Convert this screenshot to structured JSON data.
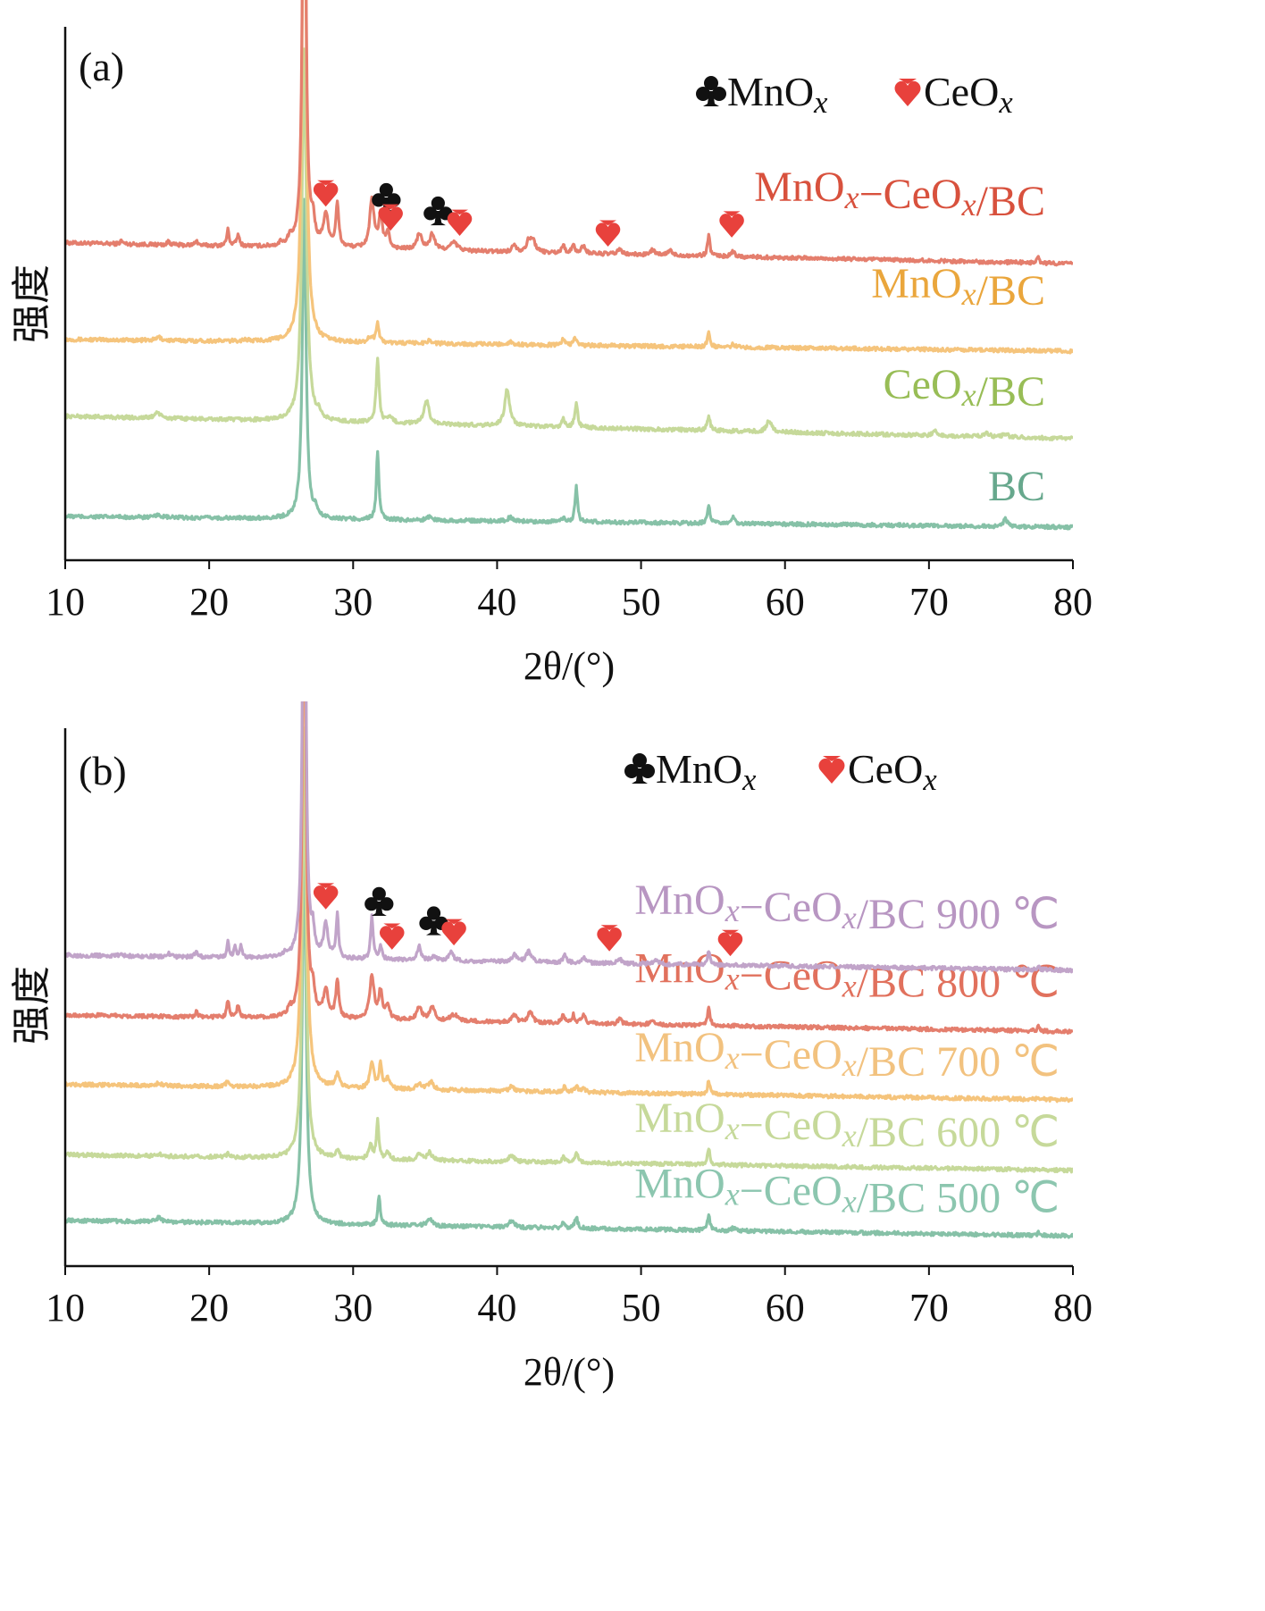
{
  "chart_data": [
    {
      "type": "line",
      "panel_label": "(a)",
      "xlabel": "2θ/(°)",
      "ylabel": "强度",
      "xlim": [
        10,
        80
      ],
      "ylim": [
        0,
        100
      ],
      "xticks": [
        10,
        20,
        30,
        40,
        50,
        60,
        70,
        80
      ],
      "legend": [
        {
          "symbol": "club",
          "text": "MnOx",
          "color": "#111111"
        },
        {
          "symbol": "heart",
          "text": "CeOx",
          "color": "#e8413c"
        }
      ],
      "series": [
        {
          "name": "MnOx−CeOx/BC",
          "color": "#e47e6d",
          "label_color": "#d8513d",
          "baseline": [
            59.5,
            55.6
          ],
          "peaks": [
            [
              26.6,
              110,
              0.12
            ],
            [
              27.2,
              4,
              0.15
            ],
            [
              28.1,
              6,
              0.2
            ],
            [
              28.9,
              8,
              0.12
            ],
            [
              31.3,
              9,
              0.18
            ],
            [
              31.9,
              6,
              0.15
            ],
            [
              32.4,
              3,
              0.15
            ],
            [
              34.6,
              3,
              0.2
            ],
            [
              35.5,
              3,
              0.2
            ],
            [
              37.0,
              1.5,
              0.3
            ],
            [
              13.9,
              0.6,
              0.1
            ],
            [
              17.2,
              0.8,
              0.1
            ],
            [
              19.1,
              1,
              0.1
            ],
            [
              21.3,
              3,
              0.1
            ],
            [
              22.0,
              2,
              0.12
            ],
            [
              25.0,
              0.8,
              0.1
            ],
            [
              25.6,
              1.5,
              0.15
            ],
            [
              41.2,
              1.5,
              0.15
            ],
            [
              42.2,
              2,
              0.2
            ],
            [
              42.5,
              2,
              0.2
            ],
            [
              44.6,
              1.5,
              0.12
            ],
            [
              45.3,
              1.5,
              0.12
            ],
            [
              46.0,
              1.5,
              0.15
            ],
            [
              48.5,
              1,
              0.15
            ],
            [
              50.8,
              1,
              0.15
            ],
            [
              52.0,
              1,
              0.15
            ],
            [
              54.7,
              4,
              0.1
            ],
            [
              56.4,
              1,
              0.15
            ],
            [
              77.6,
              1,
              0.1
            ]
          ]
        },
        {
          "name": "MnOx/BC",
          "color": "#f5c47c",
          "label_color": "#eaa63c",
          "baseline": [
            41.4,
            39.2
          ],
          "peaks": [
            [
              26.6,
              110,
              0.15
            ],
            [
              31.7,
              3.5,
              0.12
            ],
            [
              31.2,
              1,
              0.2
            ],
            [
              35.3,
              0.6,
              0.2
            ],
            [
              40.9,
              0.5,
              0.2
            ],
            [
              44.6,
              1.2,
              0.12
            ],
            [
              45.4,
              1.5,
              0.12
            ],
            [
              54.7,
              2.8,
              0.1
            ],
            [
              56.4,
              0.5,
              0.15
            ],
            [
              16.5,
              0.6,
              0.2
            ],
            [
              22.5,
              0.3,
              0.2
            ]
          ]
        },
        {
          "name": "CeOx/BC",
          "color": "#c6d99a",
          "label_color": "#98bd56",
          "baseline": [
            27.0,
            22.8
          ],
          "peaks": [
            [
              26.6,
              70,
              0.18
            ],
            [
              31.7,
              12,
              0.12
            ],
            [
              35.1,
              4.5,
              0.2
            ],
            [
              40.7,
              7,
              0.2
            ],
            [
              45.5,
              4.5,
              0.12
            ],
            [
              44.6,
              1.5,
              0.12
            ],
            [
              54.7,
              2.7,
              0.12
            ],
            [
              58.9,
              2.2,
              0.2
            ],
            [
              16.4,
              1.2,
              0.2
            ],
            [
              27.6,
              1,
              0.1
            ],
            [
              32.6,
              1,
              0.2
            ],
            [
              70.4,
              0.8,
              0.2
            ],
            [
              74.0,
              0.8,
              0.2
            ],
            [
              75.3,
              0.6,
              0.2
            ]
          ]
        },
        {
          "name": "BC",
          "color": "#86c1a7",
          "label_color": "#67a88d",
          "baseline": [
            8.2,
            6.2
          ],
          "peaks": [
            [
              26.6,
              60,
              0.15
            ],
            [
              31.7,
              13,
              0.1
            ],
            [
              45.5,
              6.7,
              0.1
            ],
            [
              54.7,
              3.3,
              0.1
            ],
            [
              27.4,
              1.5,
              0.1
            ],
            [
              56.4,
              1.5,
              0.1
            ],
            [
              75.3,
              1.5,
              0.15
            ],
            [
              16.5,
              0.5,
              0.2
            ],
            [
              35.3,
              0.7,
              0.2
            ],
            [
              40.9,
              0.7,
              0.2
            ],
            [
              44.6,
              0.7,
              0.1
            ]
          ]
        }
      ],
      "markers": [
        {
          "symbol": "heart",
          "x": 28.1,
          "y": 69
        },
        {
          "symbol": "club",
          "x": 32.3,
          "y": 68
        },
        {
          "symbol": "heart",
          "x": 32.6,
          "y": 64.5
        },
        {
          "symbol": "club",
          "x": 35.9,
          "y": 65.5
        },
        {
          "symbol": "heart",
          "x": 37.4,
          "y": 63.5
        },
        {
          "symbol": "heart",
          "x": 47.7,
          "y": 61.5
        },
        {
          "symbol": "heart",
          "x": 56.3,
          "y": 63.2
        }
      ]
    },
    {
      "type": "line",
      "panel_label": "(b)",
      "xlabel": "2θ/(°)",
      "ylabel": "强度",
      "xlim": [
        10,
        80
      ],
      "ylim": [
        0,
        100
      ],
      "xticks": [
        10,
        20,
        30,
        40,
        50,
        60,
        70,
        80
      ],
      "legend": [
        {
          "symbol": "club",
          "text": "MnOx",
          "color": "#111111"
        },
        {
          "symbol": "heart",
          "text": "CeOx",
          "color": "#e8413c"
        }
      ],
      "series": [
        {
          "name": "MnOx−CeOx/BC 900 ℃",
          "color": "#c1a4c9",
          "label_color": "#b896c2",
          "baseline": [
            57.8,
            55.0
          ],
          "peaks": [
            [
              26.6,
              110,
              0.12
            ],
            [
              27.2,
              4,
              0.12
            ],
            [
              28.1,
              6,
              0.18
            ],
            [
              28.9,
              8,
              0.1
            ],
            [
              31.3,
              8,
              0.1
            ],
            [
              31.9,
              2.5,
              0.12
            ],
            [
              34.6,
              2.5,
              0.15
            ],
            [
              35.6,
              0.8,
              0.2
            ],
            [
              36.8,
              1.5,
              0.2
            ],
            [
              13.9,
              0.6,
              0.1
            ],
            [
              17.2,
              0.6,
              0.1
            ],
            [
              19.1,
              1.2,
              0.1
            ],
            [
              21.3,
              3,
              0.08
            ],
            [
              21.8,
              2,
              0.1
            ],
            [
              22.2,
              2,
              0.1
            ],
            [
              25.3,
              0.8,
              0.1
            ],
            [
              41.2,
              1.5,
              0.15
            ],
            [
              42.2,
              2,
              0.2
            ],
            [
              44.7,
              1.5,
              0.12
            ],
            [
              46.0,
              1.2,
              0.15
            ],
            [
              48.5,
              1,
              0.15
            ],
            [
              51.0,
              1,
              0.15
            ],
            [
              54.7,
              2.5,
              0.1
            ],
            [
              77.6,
              0.6,
              0.1
            ]
          ]
        },
        {
          "name": "MnOx−CeOx/BC 800 ℃",
          "color": "#e47e6d",
          "label_color": "#e1715d",
          "baseline": [
            46.7,
            43.6
          ],
          "peaks": [
            [
              26.6,
              110,
              0.12
            ],
            [
              27.2,
              4,
              0.15
            ],
            [
              28.1,
              5,
              0.2
            ],
            [
              28.9,
              7,
              0.12
            ],
            [
              31.3,
              8,
              0.18
            ],
            [
              31.9,
              5,
              0.15
            ],
            [
              32.4,
              2.5,
              0.15
            ],
            [
              34.6,
              2.5,
              0.2
            ],
            [
              35.5,
              2.5,
              0.2
            ],
            [
              37.0,
              1.2,
              0.3
            ],
            [
              19.1,
              1,
              0.1
            ],
            [
              21.3,
              3,
              0.1
            ],
            [
              22.0,
              2,
              0.12
            ],
            [
              25.6,
              1.3,
              0.15
            ],
            [
              41.2,
              1.5,
              0.15
            ],
            [
              42.3,
              2,
              0.2
            ],
            [
              44.6,
              1.5,
              0.12
            ],
            [
              45.3,
              1.5,
              0.12
            ],
            [
              46.0,
              1.5,
              0.15
            ],
            [
              48.5,
              1,
              0.15
            ],
            [
              50.8,
              1,
              0.15
            ],
            [
              54.7,
              3.5,
              0.1
            ],
            [
              77.6,
              0.8,
              0.1
            ]
          ]
        },
        {
          "name": "MnOx−CeOx/BC 700 ℃",
          "color": "#f5c47c",
          "label_color": "#f2c27f",
          "baseline": [
            33.8,
            30.9
          ],
          "peaks": [
            [
              26.6,
              100,
              0.15
            ],
            [
              28.9,
              2.5,
              0.15
            ],
            [
              31.3,
              5,
              0.15
            ],
            [
              31.9,
              4.5,
              0.12
            ],
            [
              32.4,
              2,
              0.15
            ],
            [
              34.6,
              1.2,
              0.2
            ],
            [
              35.4,
              1.5,
              0.2
            ],
            [
              21.3,
              1.2,
              0.12
            ],
            [
              16.5,
              0.5,
              0.2
            ],
            [
              41.0,
              0.8,
              0.2
            ],
            [
              44.7,
              1,
              0.12
            ],
            [
              45.5,
              1.2,
              0.12
            ],
            [
              46.0,
              0.8,
              0.15
            ],
            [
              54.7,
              2.5,
              0.1
            ],
            [
              77.6,
              0.5,
              0.1
            ]
          ]
        },
        {
          "name": "MnOx−CeOx/BC 600 ℃",
          "color": "#c6d99a",
          "label_color": "#c6d99a",
          "baseline": [
            20.7,
            17.8
          ],
          "peaks": [
            [
              26.6,
              80,
              0.15
            ],
            [
              28.9,
              1.5,
              0.15
            ],
            [
              31.2,
              2.5,
              0.15
            ],
            [
              31.7,
              7,
              0.1
            ],
            [
              32.4,
              1.2,
              0.15
            ],
            [
              34.6,
              1,
              0.2
            ],
            [
              35.3,
              1.5,
              0.2
            ],
            [
              41.0,
              1.2,
              0.2
            ],
            [
              44.6,
              1,
              0.12
            ],
            [
              45.5,
              2,
              0.12
            ],
            [
              54.7,
              3,
              0.1
            ],
            [
              16.5,
              0.4,
              0.2
            ],
            [
              21.3,
              0.6,
              0.12
            ]
          ]
        },
        {
          "name": "MnOx−CeOx/BC 500 ℃",
          "color": "#86c1a7",
          "label_color": "#8cc6af",
          "baseline": [
            8.5,
            5.6
          ],
          "peaks": [
            [
              26.6,
              75,
              0.15
            ],
            [
              31.8,
              5.5,
              0.1
            ],
            [
              35.3,
              1.5,
              0.2
            ],
            [
              41.0,
              1.2,
              0.2
            ],
            [
              44.6,
              1,
              0.12
            ],
            [
              45.5,
              2,
              0.12
            ],
            [
              54.7,
              3,
              0.1
            ],
            [
              16.5,
              0.8,
              0.2
            ],
            [
              56.4,
              0.5,
              0.15
            ],
            [
              77.6,
              0.5,
              0.1
            ]
          ]
        }
      ],
      "markers": [
        {
          "symbol": "heart",
          "x": 28.1,
          "y": 69
        },
        {
          "symbol": "club",
          "x": 31.8,
          "y": 67.8
        },
        {
          "symbol": "heart",
          "x": 32.7,
          "y": 61.5
        },
        {
          "symbol": "club",
          "x": 35.6,
          "y": 64.2
        },
        {
          "symbol": "heart",
          "x": 37.0,
          "y": 62.3
        },
        {
          "symbol": "heart",
          "x": 47.8,
          "y": 61.2
        },
        {
          "symbol": "heart",
          "x": 56.2,
          "y": 60.3
        }
      ]
    }
  ]
}
